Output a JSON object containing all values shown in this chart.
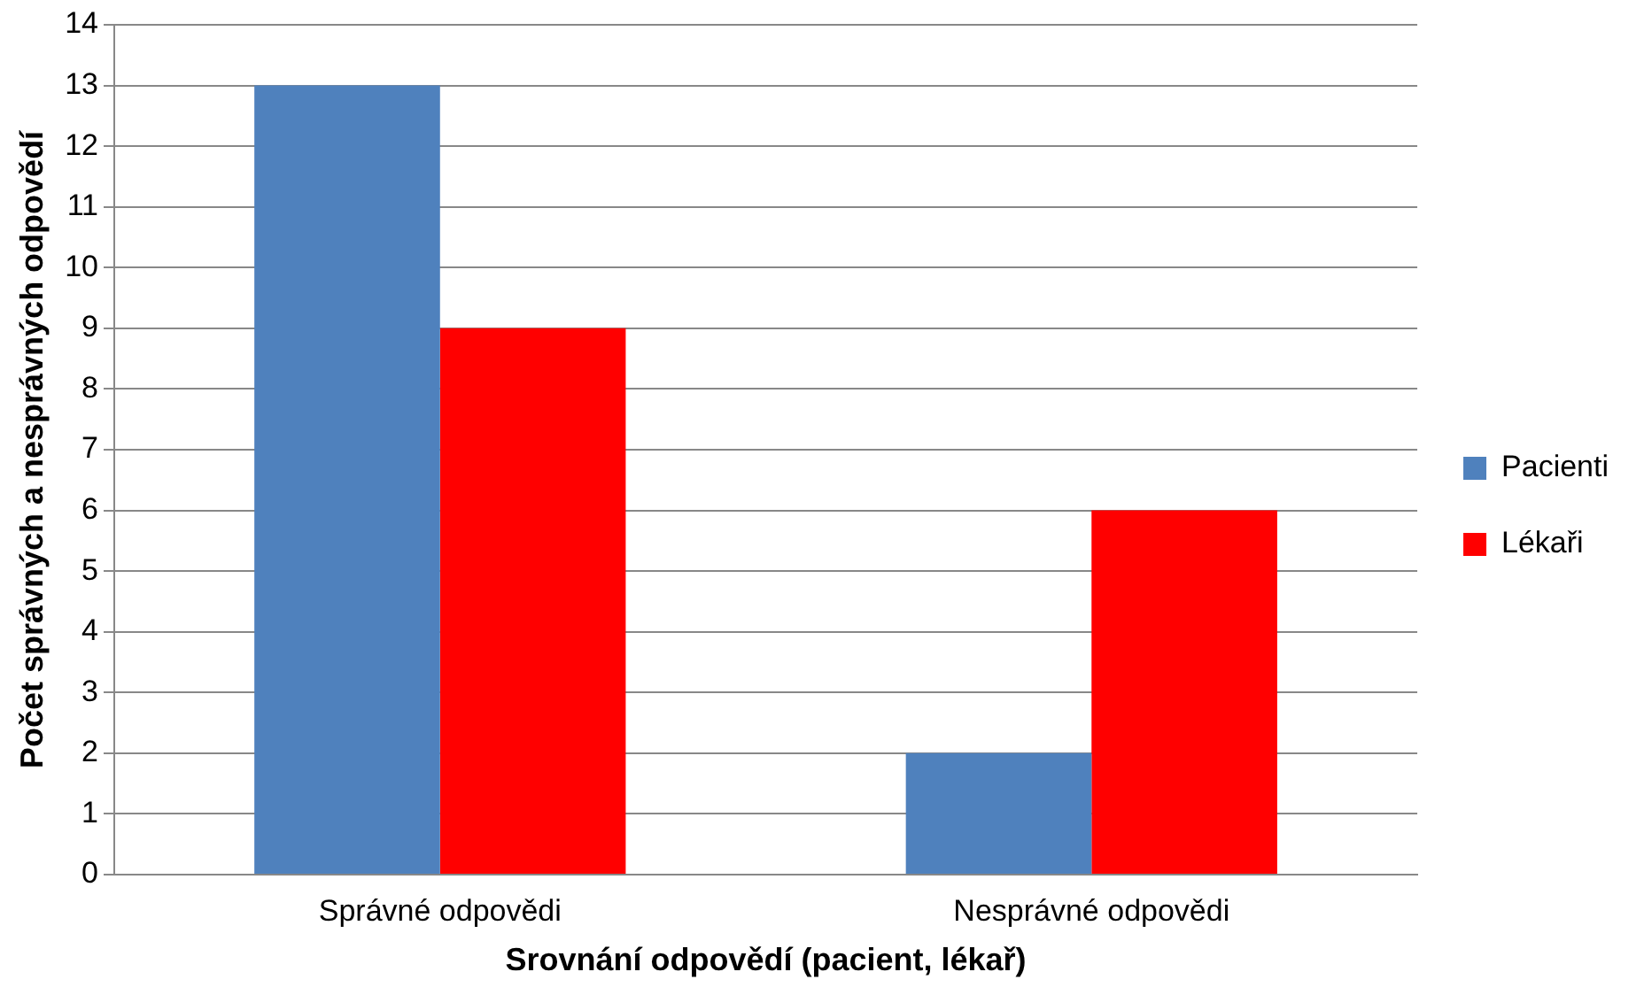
{
  "chart_data": {
    "type": "bar",
    "xlabel": "Srovnání odpovědí (pacient, lékař)",
    "ylabel": "Počet správných a nesprávných odpovědí",
    "categories": [
      "Správné odpovědi",
      "Nesprávné odpovědi"
    ],
    "series": [
      {
        "name": "Pacienti",
        "color": "#4f81bd",
        "values": [
          13,
          2
        ]
      },
      {
        "name": "Lékaři",
        "color": "#ff0000",
        "values": [
          9,
          6
        ]
      }
    ],
    "ylim": [
      0,
      14
    ],
    "yticks": [
      0,
      1,
      2,
      3,
      4,
      5,
      6,
      7,
      8,
      9,
      10,
      11,
      12,
      13,
      14
    ],
    "grid": "y",
    "legend": "right"
  }
}
